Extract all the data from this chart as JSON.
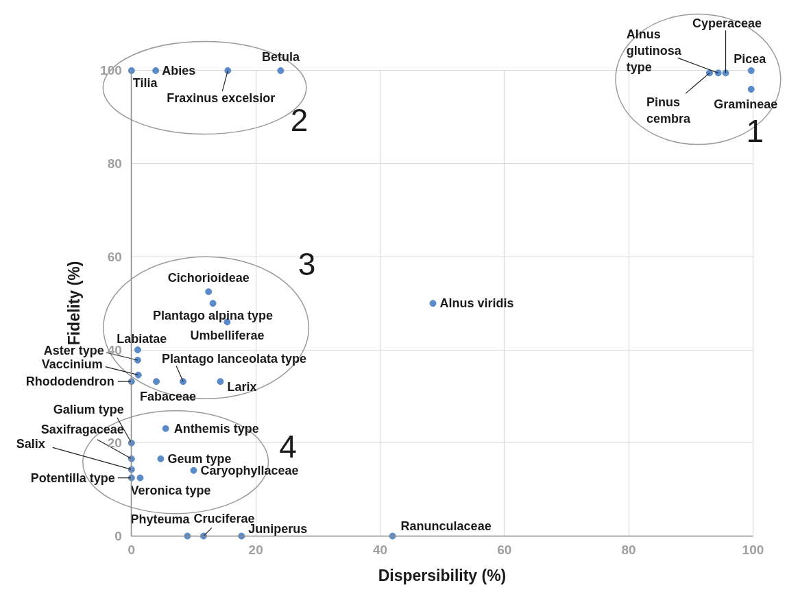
{
  "chart_data": {
    "type": "scatter",
    "xlabel": "Dispersibility (%)",
    "ylabel": "Fidelity (%)",
    "xlim": [
      0,
      100
    ],
    "ylim": [
      0,
      100
    ],
    "xticks": [
      0,
      20,
      40,
      60,
      80,
      100
    ],
    "yticks": [
      0,
      20,
      40,
      60,
      80,
      100
    ],
    "grid": true,
    "marker": "circle",
    "series": [
      {
        "color": "#5b8ac8",
        "x": [
          93,
          94.4,
          95.6,
          99.7,
          99.7
        ],
        "values": [
          99.5,
          99.5,
          99.5,
          100,
          96
        ]
      },
      {
        "color": "#5b8ac8",
        "x": [
          0,
          3.9,
          15.5,
          24
        ],
        "values": [
          100,
          100,
          100,
          100
        ]
      },
      {
        "color": "#5b8ac8",
        "x": [
          12.4,
          13.1,
          15.4,
          1,
          1,
          1.1,
          0,
          4,
          8.3,
          14.3
        ],
        "values": [
          52.5,
          50,
          46,
          40,
          37.8,
          34.6,
          33.2,
          33.2,
          33.2,
          33.2
        ]
      },
      {
        "color": "#5b8ac8",
        "x": [
          0,
          0,
          0,
          0,
          5.5,
          4.7,
          10,
          1.4
        ],
        "values": [
          20,
          16.6,
          14.3,
          12.5,
          23.1,
          16.6,
          14.1,
          12.5
        ]
      },
      {
        "color": "#5b8ac8",
        "x": [
          48.5,
          42,
          9,
          11.6,
          17.7
        ],
        "values": [
          50,
          0,
          0,
          0,
          0
        ]
      }
    ],
    "annotations": [
      {
        "text": "Tilia",
        "x": 0,
        "y": 100
      },
      {
        "text": "Abies",
        "x": 3.9,
        "y": 100
      },
      {
        "text": "Fraxinus excelsior",
        "x": 15.5,
        "y": 100
      },
      {
        "text": "Betula",
        "x": 24,
        "y": 100
      },
      {
        "text": "Picea",
        "x": 99.7,
        "y": 100
      },
      {
        "text": "Gramineae",
        "x": 99.7,
        "y": 96
      },
      {
        "text": "Alnus glutinosa type",
        "x": 94.4,
        "y": 99.5
      },
      {
        "text": "Cyperaceae",
        "x": 95.6,
        "y": 99.5
      },
      {
        "text": "Pinus cembra",
        "x": 93,
        "y": 99.5
      },
      {
        "text": "Cichorioideae",
        "x": 12.4,
        "y": 52.5
      },
      {
        "text": "Plantago alpina type",
        "x": 13.1,
        "y": 50
      },
      {
        "text": "Umbelliferae",
        "x": 15.4,
        "y": 46
      },
      {
        "text": "Alnus viridis",
        "x": 48.5,
        "y": 50
      },
      {
        "text": "Labiatae",
        "x": 1,
        "y": 40
      },
      {
        "text": "Aster type",
        "x": 1,
        "y": 37.8
      },
      {
        "text": "Vaccinium",
        "x": 1.1,
        "y": 34.6
      },
      {
        "text": "Rhododendron",
        "x": 0,
        "y": 33.2
      },
      {
        "text": "Fabaceae",
        "x": 4,
        "y": 33.2
      },
      {
        "text": "Plantago lanceolata type",
        "x": 8.3,
        "y": 33.2
      },
      {
        "text": "Larix",
        "x": 14.3,
        "y": 33.2
      },
      {
        "text": "Galium type",
        "x": 0,
        "y": 20
      },
      {
        "text": "Saxifragaceae",
        "x": 0,
        "y": 16.6
      },
      {
        "text": "Salix",
        "x": 0,
        "y": 14.3
      },
      {
        "text": "Potentilla type",
        "x": 0,
        "y": 12.5
      },
      {
        "text": "Anthemis type",
        "x": 5.5,
        "y": 23.1
      },
      {
        "text": "Geum type",
        "x": 4.7,
        "y": 16.6
      },
      {
        "text": "Caryophyllaceae",
        "x": 10,
        "y": 14.1
      },
      {
        "text": "Veronica type",
        "x": 1.4,
        "y": 12.5
      },
      {
        "text": "Phyteuma",
        "x": 9,
        "y": 0
      },
      {
        "text": "Cruciferae",
        "x": 11.6,
        "y": 0
      },
      {
        "text": "Juniperus",
        "x": 17.7,
        "y": 0
      },
      {
        "text": "Ranunculaceae",
        "x": 42,
        "y": 0
      },
      "1",
      "2",
      "3",
      "4"
    ]
  }
}
